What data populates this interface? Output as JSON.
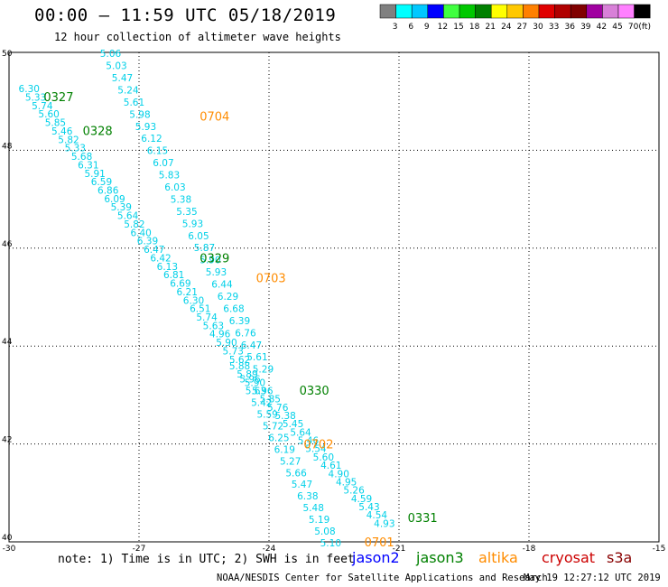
{
  "title": "00:00 – 11:59 UTC 05/18/2019",
  "subtitle": "12 hour collection of altimeter wave heights",
  "note": "note:  1) Time is in UTC;  2) SWH is in feet",
  "credit": "NOAA/NESDIS Center for Satellite Applications and Research",
  "stamp": "May 19 12:27:12 UTC 2019",
  "colorbar": {
    "labels": [
      "3",
      "6",
      "9",
      "12",
      "15",
      "18",
      "21",
      "24",
      "27",
      "30",
      "33",
      "36",
      "39",
      "42",
      "45",
      "70",
      "(ft)"
    ],
    "colors": [
      "#808080",
      "#00ffff",
      "#00c8ff",
      "#0000ff",
      "#40ff40",
      "#00c800",
      "#008000",
      "#ffff00",
      "#ffc800",
      "#ff8000",
      "#e00000",
      "#b00000",
      "#800000",
      "#a000a0",
      "#d880d8",
      "#ff80ff",
      "#000000"
    ]
  },
  "legend": [
    {
      "label": "jason2",
      "color": "#0000ff"
    },
    {
      "label": "jason3",
      "color": "#008000"
    },
    {
      "label": "altika",
      "color": "#ff8c00"
    },
    {
      "label": "cryosat",
      "color": "#cc0000"
    },
    {
      "label": "s3a",
      "color": "#880000"
    }
  ],
  "chart_data": {
    "type": "scatter",
    "title": "00:00 – 11:59 UTC 05/18/2019",
    "subtitle": "12 hour collection of altimeter wave heights",
    "x_ticks": [
      "-30",
      "-27",
      "-24",
      "-21",
      "-18",
      "-15"
    ],
    "y_ticks": [
      "40",
      "42",
      "44",
      "46",
      "48",
      "50"
    ],
    "xlim": [
      -30,
      -15
    ],
    "ylim": [
      40,
      50
    ],
    "grid": true,
    "point_color": "#00d0e8",
    "track_labels": [
      {
        "label": "0327",
        "x": -29.2,
        "y": 49.1,
        "color": "#008000"
      },
      {
        "label": "0328",
        "x": -28.3,
        "y": 48.4,
        "color": "#008000"
      },
      {
        "label": "0704",
        "x": -25.6,
        "y": 48.7,
        "color": "#ff8c00"
      },
      {
        "label": "0329",
        "x": -25.6,
        "y": 45.8,
        "color": "#008000"
      },
      {
        "label": "0703",
        "x": -24.3,
        "y": 45.4,
        "color": "#ff8c00"
      },
      {
        "label": "0330",
        "x": -23.3,
        "y": 43.1,
        "color": "#008000"
      },
      {
        "label": "0702",
        "x": -23.2,
        "y": 42.0,
        "color": "#ff8c00"
      },
      {
        "label": "0331",
        "x": -20.8,
        "y": 40.5,
        "color": "#008000"
      },
      {
        "label": "0701",
        "x": -21.8,
        "y": 40.0,
        "color": "#ff8c00"
      }
    ],
    "tracks": [
      {
        "start": [
          -29.78,
          49.26
        ],
        "end": [
          -24.92,
          43.73
        ],
        "values": [
          "6.30",
          "5.33",
          "5.74",
          "5.60",
          "5.85",
          "5.46",
          "5.82",
          "5.33",
          "5.68",
          "6.31",
          "5.91",
          "6.59",
          "6.86",
          "6.09",
          "5.39",
          "5.64",
          "5.82",
          "6.40",
          "6.39",
          "6.47",
          "6.42",
          "6.13",
          "6.81",
          "6.69",
          "6.21",
          "6.30",
          "6.51",
          "5.74",
          "5.63",
          "4.96",
          "5.90",
          "5.73",
          "5.62"
        ]
      },
      {
        "start": [
          -24.92,
          43.6
        ],
        "end": [
          -21.58,
          40.38
        ],
        "values": [
          "5.88",
          "5.89",
          "5.90",
          "5.96",
          "5.85",
          "5.76",
          "5.38",
          "5.45",
          "5.64",
          "5.46",
          "5.54",
          "5.60",
          "4.61",
          "4.90",
          "4.95",
          "5.26",
          "4.59",
          "5.43",
          "4.54",
          "4.93"
        ]
      },
      {
        "start": [
          -27.9,
          49.98
        ],
        "end": [
          -24.38,
          43.53
        ],
        "values": [
          "5.06",
          "5.03",
          "5.47",
          "5.24",
          "5.61",
          "5.98",
          "5.93",
          "6.12",
          "6.15",
          "6.07",
          "5.83",
          "6.03",
          "5.38",
          "5.35",
          "5.93",
          "6.05",
          "5.87",
          "5.90",
          "5.93",
          "6.44",
          "6.29",
          "6.68",
          "6.39",
          "6.76",
          "6.47",
          "5.61",
          "5.29"
        ]
      },
      {
        "start": [
          -24.68,
          43.33
        ],
        "end": [
          -22.82,
          39.98
        ],
        "values": [
          "5.96",
          "5.63",
          "5.42",
          "5.59",
          "5.72",
          "6.25",
          "6.19",
          "5.27",
          "5.66",
          "5.47",
          "6.38",
          "5.48",
          "5.19",
          "5.08",
          "5.10"
        ]
      }
    ]
  }
}
